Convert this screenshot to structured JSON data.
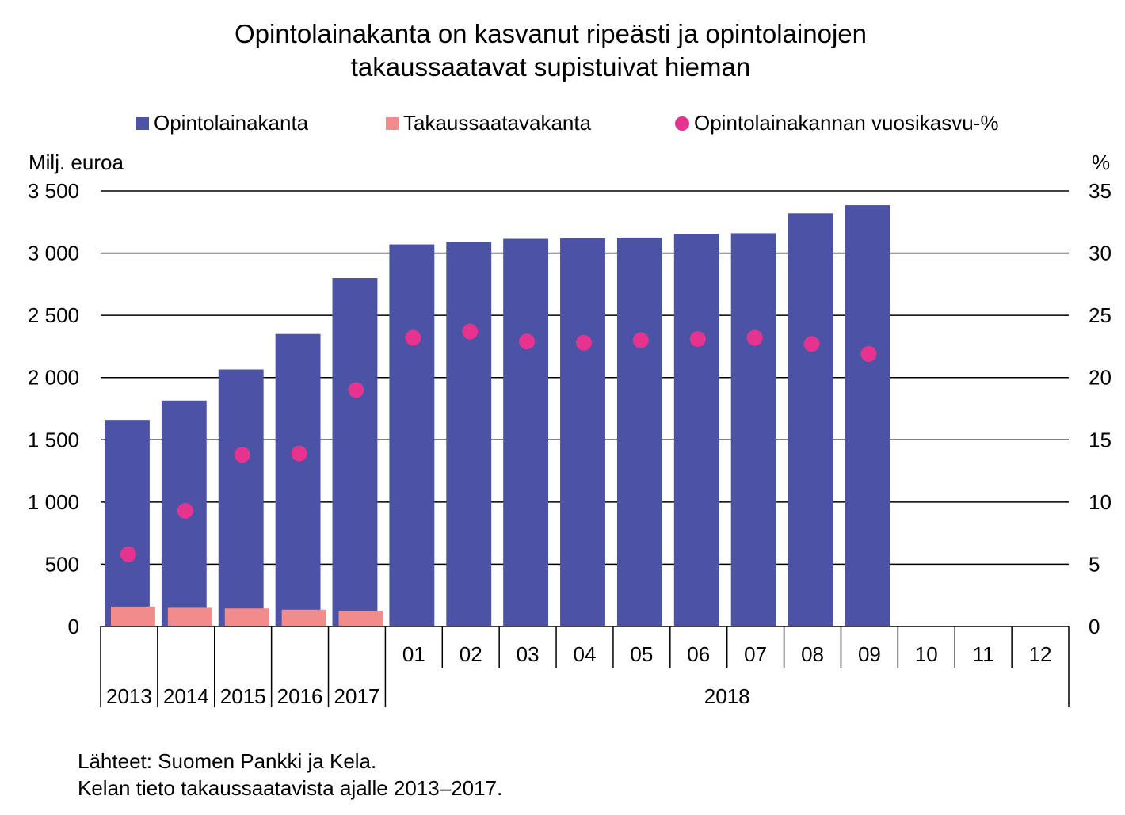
{
  "title_lines": [
    "Opintolainakanta on kasvanut ripeästi ja opintolainojen",
    "takaussaatavat supistuivat hieman"
  ],
  "legend": [
    {
      "label": "Opintolainakanta",
      "color": "#4c53a4",
      "shape": "square"
    },
    {
      "label": "Takaussaatavakanta",
      "color": "#f28b8b",
      "shape": "square"
    },
    {
      "label": "Opintolainakannan vuosikasvu-%",
      "color": "#e6338f",
      "shape": "circle"
    }
  ],
  "left_axis_title": "Milj. euroa",
  "right_axis_title": "%",
  "source_lines": [
    "Lähteet: Suomen Pankki ja Kela.",
    "Kelan tieto takaussaatavista ajalle 2013–2017."
  ],
  "chart_data": {
    "type": "bar",
    "categories": [
      "2013",
      "2014",
      "2015",
      "2016",
      "2017",
      "01",
      "02",
      "03",
      "04",
      "05",
      "06",
      "07",
      "08",
      "09",
      "10",
      "11",
      "12"
    ],
    "category_groups": [
      {
        "label": "2013",
        "from": 0,
        "to": 0
      },
      {
        "label": "2014",
        "from": 1,
        "to": 1
      },
      {
        "label": "2015",
        "from": 2,
        "to": 2
      },
      {
        "label": "2016",
        "from": 3,
        "to": 3
      },
      {
        "label": "2017",
        "from": 4,
        "to": 4
      },
      {
        "label": "2018",
        "from": 5,
        "to": 16
      }
    ],
    "series": [
      {
        "name": "Opintolainakanta",
        "axis": "left",
        "kind": "bar",
        "values": [
          1660,
          1815,
          2065,
          2350,
          2800,
          3070,
          3090,
          3115,
          3120,
          3125,
          3155,
          3160,
          3320,
          3385,
          null,
          null,
          null
        ]
      },
      {
        "name": "Takaussaatavakanta",
        "axis": "left",
        "kind": "bar",
        "values": [
          160,
          150,
          145,
          135,
          125,
          null,
          null,
          null,
          null,
          null,
          null,
          null,
          null,
          null,
          null,
          null,
          null
        ]
      },
      {
        "name": "Opintolainakannan vuosikasvu-%",
        "axis": "right",
        "kind": "scatter",
        "values": [
          5.8,
          9.3,
          13.8,
          13.9,
          19.0,
          23.2,
          23.7,
          22.9,
          22.8,
          23.0,
          23.1,
          23.2,
          22.7,
          21.9,
          null,
          null,
          null
        ]
      }
    ],
    "y_left": {
      "min": 0,
      "max": 3500,
      "ticks": [
        0,
        500,
        1000,
        1500,
        2000,
        2500,
        3000,
        3500
      ],
      "tick_labels": [
        "0",
        "500",
        "1 000",
        "1 500",
        "2 000",
        "2 500",
        "3 000",
        "3 500"
      ]
    },
    "y_right": {
      "min": 0,
      "max": 35,
      "ticks": [
        0,
        5,
        10,
        15,
        20,
        25,
        30,
        35
      ],
      "tick_labels": [
        "0",
        "5",
        "10",
        "15",
        "20",
        "25",
        "30",
        "35"
      ]
    },
    "grid": true
  }
}
